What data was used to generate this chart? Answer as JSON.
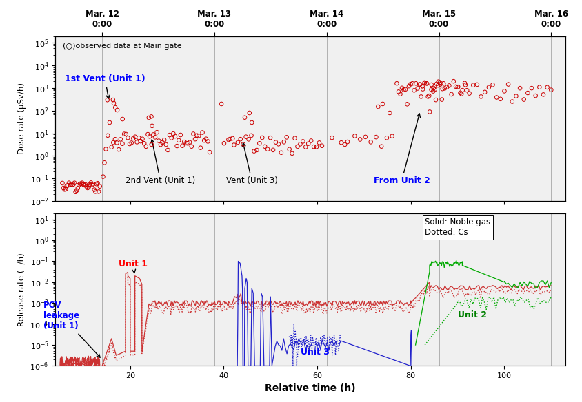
{
  "top_xaxis_labels": [
    "Mar. 12\n0:00",
    "Mar. 13\n0:00",
    "Mar. 14\n0:00",
    "Mar. 15\n0:00",
    "Mar. 16\n0:00"
  ],
  "top_xaxis_positions": [
    14,
    38,
    62,
    86,
    110
  ],
  "vline_positions": [
    14,
    38,
    62,
    86,
    110
  ],
  "xlabel": "Relative time (h)",
  "ylabel_top": "Dose rate (μSv/h)",
  "ylabel_bottom": "Release rate (- /h)",
  "xlim": [
    4,
    113
  ],
  "obs_color": "#cc0000",
  "unit1_color": "#cc3333",
  "unit3_color": "#2222cc",
  "unit2_color": "#00aa00",
  "bg_color": "#f0f0f0",
  "obs_label": "(○)observed data at Main gate"
}
